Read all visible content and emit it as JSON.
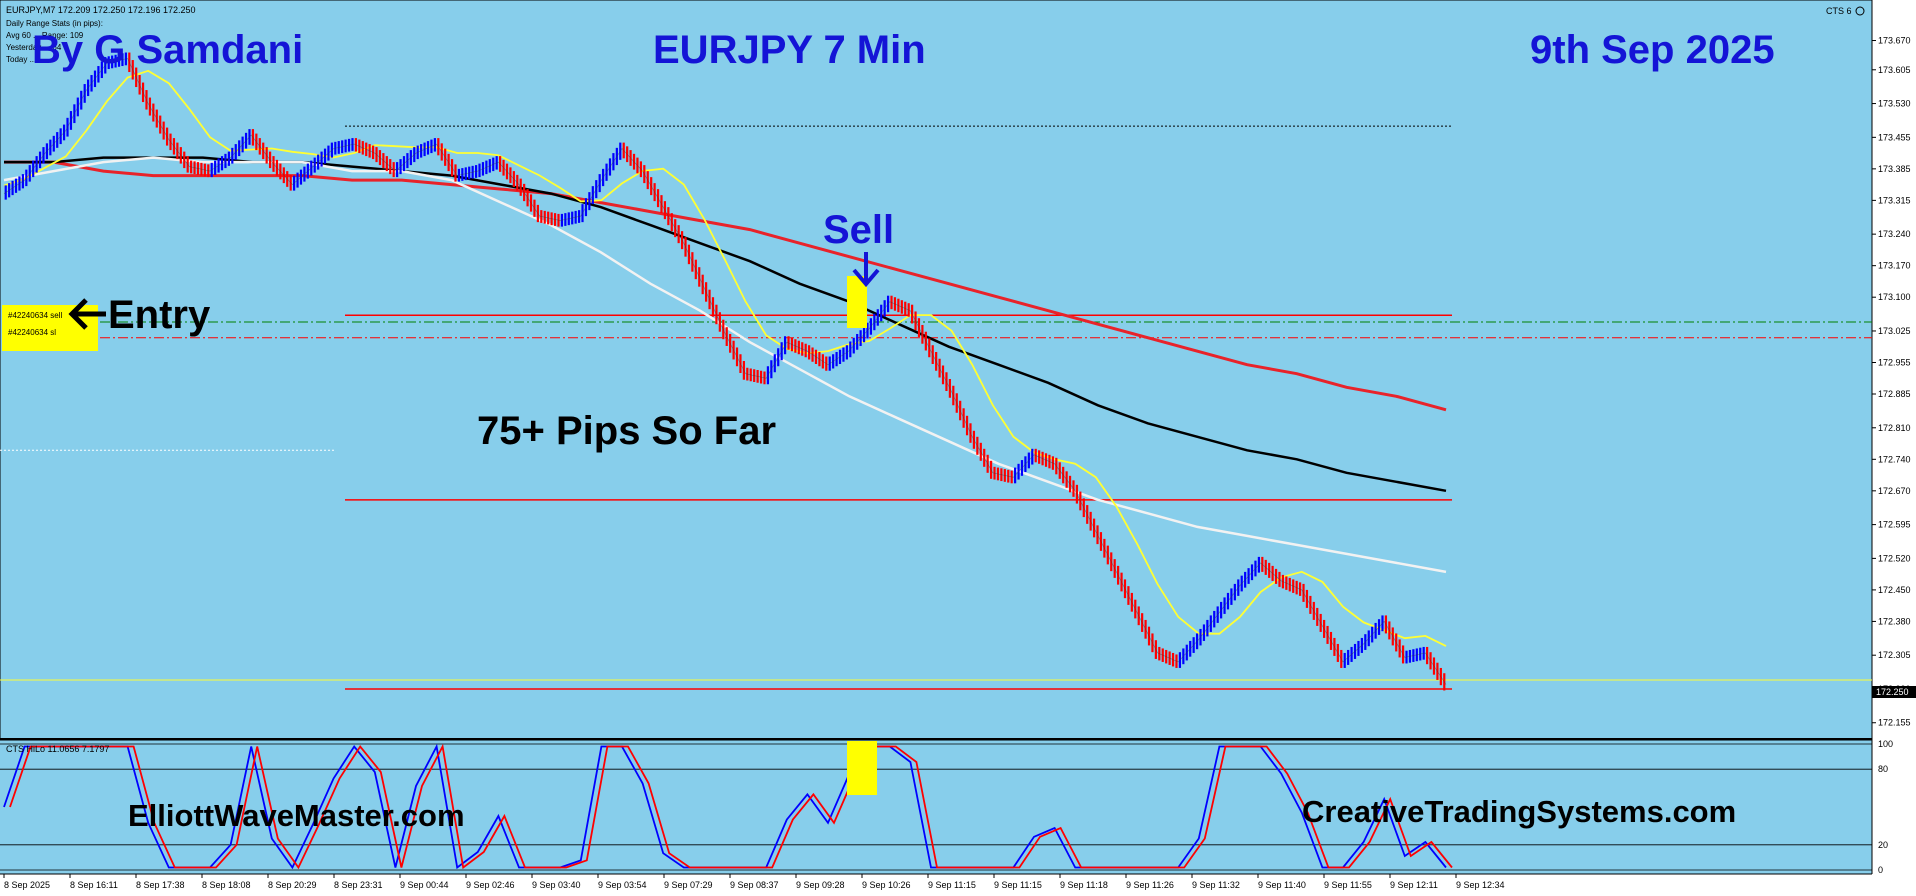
{
  "header": {
    "symbol_line": "EURJPY,M7  172.209 172.250 172.196 172.250",
    "info_lines": [
      "Daily Range Stats (in pips):",
      "Avg 60 ... Range: 109",
      "Yesterday ... 64",
      "Today ..."
    ],
    "top_right": "CTS 6"
  },
  "overlay": {
    "author": "By G Samdani",
    "instrument": "EURJPY 7 Min",
    "date": "9th Sep 2025",
    "sell": "Sell",
    "entry": "Entry",
    "pips": "75+ Pips So Far",
    "site_left": "ElliottWaveMaster.com",
    "site_right": "CreativeTradingSystems.com",
    "order_sell_tag": "#42240634 sell",
    "order_sl_tag": "#42240634 sl"
  },
  "indicator": {
    "title": "CTS HiLo 11.0656 7.1797",
    "levels": [
      "100",
      "80",
      "20",
      "0"
    ]
  },
  "colors": {
    "background": "#87ceeb",
    "up_bar": "#0000ff",
    "down_bar": "#ff0000",
    "ma_red": "#e8232a",
    "ma_black": "#000000",
    "ma_white": "#f2f2f2",
    "ma_yellow": "#ffff33",
    "highlight": "#ffff00",
    "title_blue": "#1414d6"
  },
  "chart_data": {
    "type": "line",
    "title": "EURJPY 7 Min",
    "y_ticks": [
      "173.670",
      "173.605",
      "173.530",
      "173.455",
      "173.385",
      "173.315",
      "173.240",
      "173.170",
      "173.100",
      "173.025",
      "172.955",
      "172.885",
      "172.810",
      "172.740",
      "172.670",
      "172.595",
      "172.520",
      "172.450",
      "172.380",
      "172.305",
      "172.230",
      "172.155"
    ],
    "ylim": [
      172.13,
      173.72
    ],
    "x_ticks": [
      "8 Sep 2025",
      "8 Sep 16:11",
      "8 Sep 17:38",
      "8 Sep 18:08",
      "8 Sep 20:29",
      "8 Sep 23:31",
      "9 Sep 00:44",
      "9 Sep 02:46",
      "9 Sep 03:40",
      "9 Sep 03:54",
      "9 Sep 07:29",
      "9 Sep 08:37",
      "9 Sep 09:28",
      "9 Sep 10:26",
      "9 Sep 11:15",
      "9 Sep 11:15",
      "9 Sep 11:18",
      "9 Sep 11:26",
      "9 Sep 11:32",
      "9 Sep 11:40",
      "9 Sep 11:55",
      "9 Sep 12:11",
      "9 Sep 12:34"
    ],
    "current_price": "172.250",
    "levels": {
      "top_dotted": 173.48,
      "entry_red": 173.06,
      "sell_green_dashdot": 173.045,
      "sl_red_dashdot": 173.01,
      "mid_red": 172.65,
      "bottom_red": 172.23,
      "current": 172.25,
      "white_dotted": 172.76
    },
    "price": [
      173.33,
      173.36,
      173.42,
      173.47,
      173.56,
      173.62,
      173.63,
      173.53,
      173.45,
      173.39,
      173.38,
      173.41,
      173.46,
      173.4,
      173.35,
      173.39,
      173.43,
      173.44,
      173.42,
      173.38,
      173.42,
      173.44,
      173.37,
      173.38,
      173.4,
      173.35,
      173.28,
      173.27,
      173.28,
      173.36,
      173.43,
      173.38,
      173.3,
      173.22,
      173.12,
      173.02,
      172.93,
      172.92,
      173.0,
      172.98,
      172.95,
      172.98,
      173.03,
      173.09,
      173.07,
      172.98,
      172.89,
      172.79,
      172.71,
      172.7,
      172.75,
      172.73,
      172.67,
      172.58,
      172.49,
      172.4,
      172.31,
      172.29,
      172.34,
      172.4,
      172.46,
      172.51,
      172.47,
      172.45,
      172.37,
      172.29,
      172.33,
      172.38,
      172.3,
      172.31,
      172.24
    ],
    "series": [
      {
        "name": "",
        "values": [
          173.4,
          173.4,
          173.38,
          173.37,
          173.37,
          173.37,
          173.37,
          173.36,
          173.36,
          173.35,
          173.34,
          173.33,
          173.31,
          173.29,
          173.27,
          173.25,
          173.22,
          173.19,
          173.16,
          173.13,
          173.1,
          173.07,
          173.04,
          173.01,
          172.98,
          172.95,
          172.93,
          172.9,
          172.88,
          172.85
        ]
      },
      {
        "name": "",
        "values": [
          173.4,
          173.4,
          173.41,
          173.41,
          173.41,
          173.4,
          173.4,
          173.39,
          173.38,
          173.37,
          173.35,
          173.33,
          173.3,
          173.26,
          173.22,
          173.18,
          173.13,
          173.09,
          173.04,
          172.99,
          172.95,
          172.91,
          172.86,
          172.82,
          172.79,
          172.76,
          172.74,
          172.71,
          172.69,
          172.67
        ]
      },
      {
        "name": "",
        "values": [
          173.36,
          173.38,
          173.4,
          173.41,
          173.4,
          173.4,
          173.4,
          173.38,
          173.38,
          173.36,
          173.31,
          173.26,
          173.2,
          173.13,
          173.07,
          173.0,
          172.94,
          172.88,
          172.83,
          172.78,
          172.73,
          172.69,
          172.65,
          172.62,
          172.59,
          172.57,
          172.55,
          172.53,
          172.51,
          172.49
        ]
      }
    ],
    "oscillator_ylim": [
      0,
      100
    ]
  }
}
